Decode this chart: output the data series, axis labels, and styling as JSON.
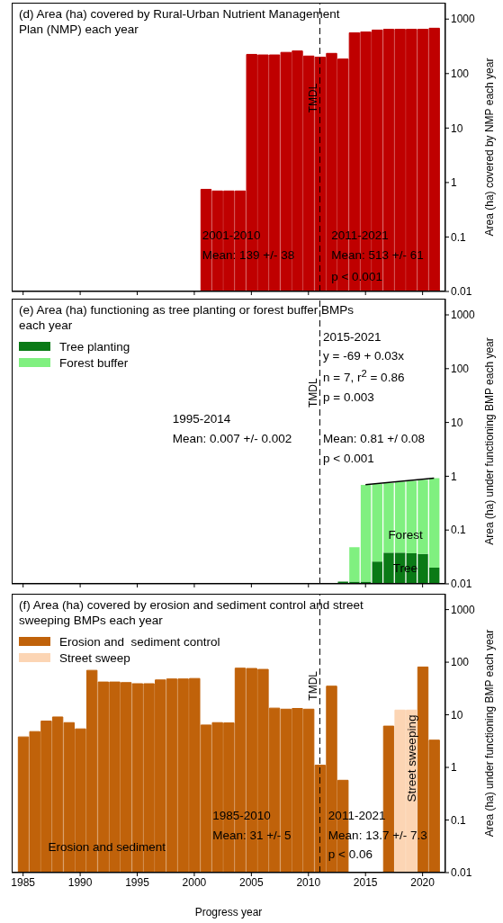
{
  "chart_data": [
    {
      "type": "bar",
      "title": "(d) Area (ha) covered by Rural-Urban Nutrient Management Plan (NMP) each year",
      "ylabel": "Area (ha) covered by NMP each year",
      "log": true,
      "xlim": [
        1984,
        2022
      ],
      "xticks": [
        1985,
        1990,
        1995,
        2000,
        2005,
        2010,
        2015,
        2020
      ],
      "ylim": [
        0.01,
        2000
      ],
      "yticks": [
        0.01,
        0.1,
        1,
        10,
        100,
        1000
      ],
      "tick_labels": "y",
      "legend": false,
      "x": [
        2001,
        2002,
        2003,
        2004,
        2005,
        2006,
        2007,
        2008,
        2009,
        2010,
        2011,
        2012,
        2013,
        2014,
        2015,
        2016,
        2017,
        2018,
        2019,
        2020,
        2021
      ],
      "series": [
        {
          "color": "#bf0000",
          "values": [
            0.75,
            0.7,
            0.7,
            0.7,
            225,
            220,
            220,
            245,
            260,
            210,
            200,
            235,
            185,
            560,
            580,
            630,
            650,
            650,
            650,
            650,
            680
          ]
        }
      ],
      "ref_lines": [
        {
          "axis": "x",
          "value": 2011,
          "label": "TMDL",
          "line_style": "dashed"
        }
      ],
      "annotations": [
        "2001-2010",
        "Mean: 139 +/- 38",
        "2011-2021",
        "Mean: 513 +/- 61",
        "p < 0.001"
      ]
    },
    {
      "type": "bar",
      "title": "(e) Area (ha) functioning as tree planting or forest buffer BMPs each year",
      "ylabel": "Area (ha) under functioning BMP each year",
      "log": true,
      "xlim": [
        1984,
        2022
      ],
      "xticks": [
        1985,
        1990,
        1995,
        2000,
        2005,
        2010,
        2015,
        2020
      ],
      "ylim": [
        0.01,
        2000
      ],
      "yticks": [
        0.01,
        0.1,
        1,
        10,
        100,
        1000
      ],
      "tick_labels": "y",
      "legend": "top left",
      "stacked": true,
      "x": [
        2013,
        2014,
        2015,
        2016,
        2017,
        2018,
        2019,
        2020,
        2021
      ],
      "series": [
        {
          "name": "Tree planting",
          "color": "#0a7a16",
          "values": [
            0.011,
            0.011,
            0.011,
            0.026,
            0.038,
            0.038,
            0.037,
            0.036,
            0.02
          ]
        },
        {
          "name": "Forest buffer",
          "color": "#80f080",
          "values": [
            null,
            0.037,
            0.679,
            0.694,
            0.712,
            0.752,
            0.783,
            0.824,
            0.9
          ]
        },
        {
          "type": "line",
          "color": "#000000",
          "x": [
            2015,
            2021
          ],
          "values": [
            0.7,
            0.92
          ]
        }
      ],
      "ref_lines": [
        {
          "axis": "x",
          "value": 2011,
          "label": "TMDL",
          "line_style": "dashed"
        }
      ],
      "annotations": [
        "2015-2021",
        "y = -69 + 0.03x",
        "n = 7, r$^{2}$ = 0.86",
        "p = 0.003",
        "1995-2014",
        "Mean: 0.007 +/- 0.002",
        "Mean: 0.81 +/ 0.08",
        "p < 0.001",
        "Forest",
        "Tree"
      ]
    },
    {
      "type": "bar",
      "title": "(f) Area (ha) covered by erosion and sediment control and street sweeping BMPs each year",
      "xlabel": "Progress year",
      "ylabel": "Area (ha) under functioning BMP each year",
      "log": true,
      "xlim": [
        1984,
        2022
      ],
      "xticks": [
        1985,
        1990,
        1995,
        2000,
        2005,
        2010,
        2015,
        2020
      ],
      "ylim": [
        0.01,
        2000
      ],
      "yticks": [
        0.01,
        0.1,
        1,
        10,
        100,
        1000
      ],
      "legend": "top left",
      "x": [
        1985,
        1986,
        1987,
        1988,
        1989,
        1990,
        1991,
        1992,
        1993,
        1994,
        1995,
        1996,
        1997,
        1998,
        1999,
        2000,
        2001,
        2002,
        2003,
        2004,
        2005,
        2006,
        2007,
        2008,
        2009,
        2010,
        2011,
        2012,
        2013,
        2014,
        2015,
        2016,
        2017,
        2018,
        2019,
        2020,
        2021
      ],
      "series": [
        {
          "name": "Erosion and  sediment control",
          "color": "#c0620a",
          "values": [
            3.8,
            4.8,
            7.6,
            9.1,
            7.1,
            5.4,
            70,
            42,
            42,
            41,
            39,
            39,
            46,
            48,
            48,
            49,
            6.4,
            7.1,
            7.0,
            77,
            76,
            73,
            13.4,
            12.8,
            13.2,
            12.8,
            1.1,
            35,
            0.57,
            null,
            null,
            null,
            6.1,
            null,
            null,
            81,
            3.3
          ]
        },
        {
          "name": "Street sweep",
          "color": "#fcd5b4",
          "x": [
            2018,
            2019
          ],
          "values": [
            12.3,
            12.3
          ]
        }
      ],
      "ref_lines": [
        {
          "axis": "x",
          "value": 2011,
          "label": "TMDL",
          "line_style": "dashed"
        }
      ],
      "annotations": [
        "1985-2010",
        "Mean: 31 +/- 5",
        "2011-2021",
        "Mean: 13.7 +/- 7.3",
        "p < 0.06",
        "Erosion and sediment",
        "Street sweeping"
      ]
    }
  ]
}
